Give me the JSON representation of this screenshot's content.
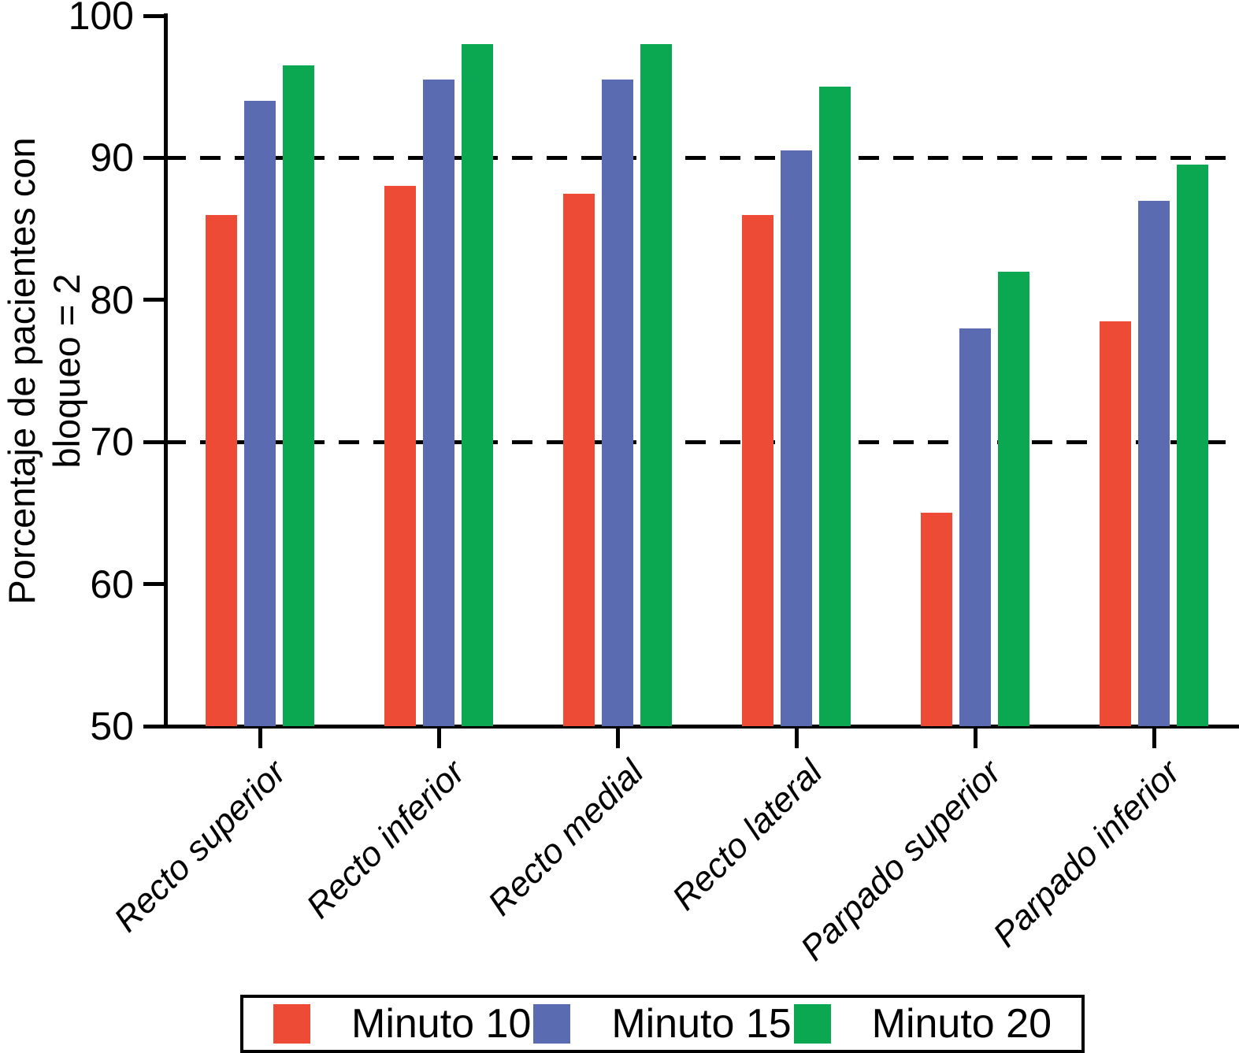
{
  "chart_data": {
    "type": "bar",
    "title": "",
    "ylabel_line1": "Porcentaje de pacientes con",
    "ylabel_line2": "bloqueo = 2",
    "xlabel": "",
    "categories": [
      "Recto superior",
      "Recto inferior",
      "Recto medial",
      "Recto lateral",
      "Parpado superior",
      "Parpado inferior"
    ],
    "series": [
      {
        "name": "Minuto 10",
        "color": "#EE4B37",
        "values": [
          86,
          88,
          87.5,
          86,
          65,
          78.5
        ]
      },
      {
        "name": "Minuto 15",
        "color": "#5B6BB2",
        "values": [
          94,
          95.5,
          95.5,
          90.5,
          78,
          87
        ]
      },
      {
        "name": "Minuto 20",
        "color": "#0BA751",
        "values": [
          96.5,
          98,
          98,
          95,
          82,
          89.5
        ]
      }
    ],
    "ylim": [
      50,
      100
    ],
    "yticks": [
      50,
      60,
      70,
      80,
      90,
      100
    ],
    "gridlines_at": [
      70,
      90
    ],
    "grid_style": "dashed",
    "legend_position": "bottom",
    "axis_color": "#000000"
  }
}
